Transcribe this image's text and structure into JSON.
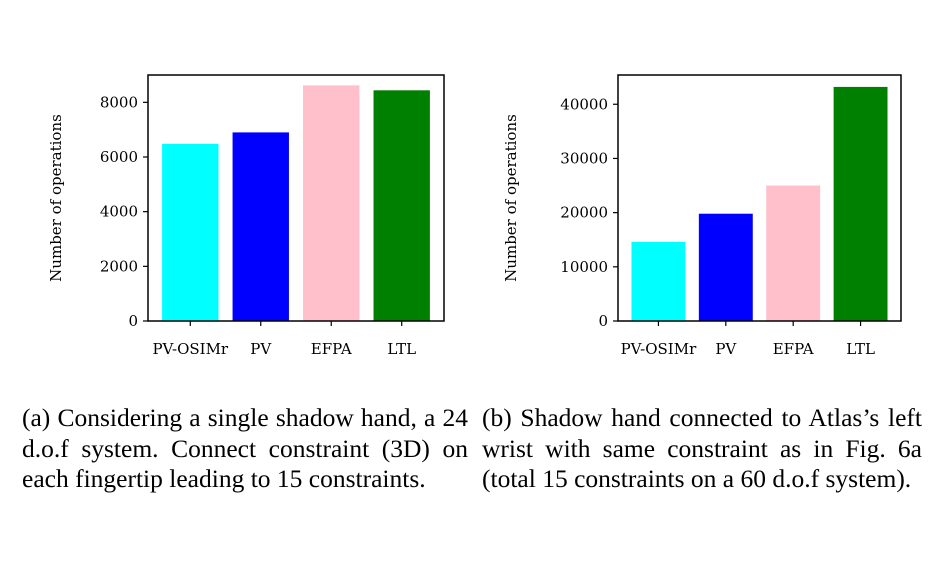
{
  "chart_data": [
    {
      "type": "bar",
      "categories": [
        "PV-OSIMr",
        "PV",
        "EFPA",
        "LTL"
      ],
      "values": [
        6480,
        6900,
        8620,
        8440
      ],
      "colors": [
        "#00ffff",
        "#0000ff",
        "#ffc0cb",
        "#008000"
      ],
      "ylabel": "Number of operations",
      "ylim": [
        0,
        9000
      ],
      "yticks": [
        0,
        2000,
        4000,
        6000,
        8000
      ],
      "grid": false,
      "caption": "(a) Considering a single shadow hand, a 24 d.o.f system. Connect constraint (3D) on each fingertip leading to 15 constraints."
    },
    {
      "type": "bar",
      "categories": [
        "PV-OSIMr",
        "PV",
        "EFPA",
        "LTL"
      ],
      "values": [
        14600,
        19800,
        25000,
        43200
      ],
      "colors": [
        "#00ffff",
        "#0000ff",
        "#ffc0cb",
        "#008000"
      ],
      "ylabel": "Number of operations",
      "ylim": [
        0,
        45400
      ],
      "yticks": [
        0,
        10000,
        20000,
        30000,
        40000
      ],
      "grid": false,
      "caption": "(b) Shadow hand connected to Atlas’s left wrist with same constraint as in Fig. 6a (total 15 constraints on a 60 d.o.f system)."
    }
  ]
}
